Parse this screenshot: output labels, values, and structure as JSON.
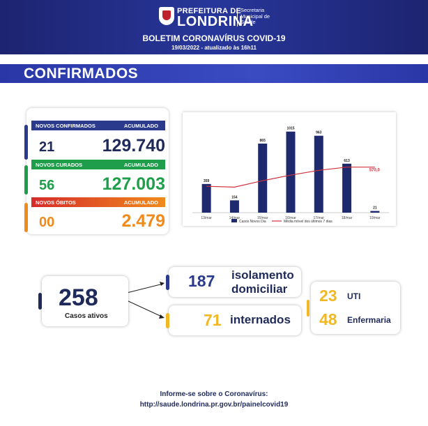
{
  "header": {
    "prefeitura_top": "PREFEITURA DE",
    "city": "LONDRINA",
    "secretaria": [
      "Secretaria",
      "Municipal de",
      "Saúde"
    ],
    "title": "BOLETIM CORONAVÍRUS COVID-19",
    "date": "19/03/2022 - atualizado às 16h11"
  },
  "section": {
    "title": "CONFIRMADOS"
  },
  "stats": {
    "confirmados": {
      "label": "NOVOS CONFIRMADOS",
      "acc_label": "ACUMULADO",
      "novos": "21",
      "acumulado": "129.740",
      "color": "#2b3a8c"
    },
    "curados": {
      "label": "NOVOS CURADOS",
      "acc_label": "ACUMULADO",
      "novos": "56",
      "acumulado": "127.003",
      "color": "#1e9e4a"
    },
    "obitos": {
      "label": "NOVOS ÓBITOS",
      "acc_label": "ACUMULADO",
      "novos": "00",
      "acumulado": "2.479",
      "color": "#f08a1c"
    }
  },
  "chart_data": {
    "type": "bar",
    "categories": [
      "13/mar",
      "14/mar",
      "15/mar",
      "16/mar",
      "17/mar",
      "18/mar",
      "19/mar"
    ],
    "series": [
      {
        "name": "Casos Novos Dia",
        "type": "bar",
        "values": [
          359,
          154,
          865,
          1015,
          963,
          613,
          21
        ],
        "color": "#1f2a6e"
      },
      {
        "name": "Média móvel dos últimos 7 dias",
        "type": "line",
        "values": [
          330,
          320,
          400,
          470,
          530,
          570,
          570
        ],
        "color": "#d0313d"
      }
    ],
    "data_labels": [
      "359",
      "154",
      "865",
      "1015",
      "963",
      "613",
      "21"
    ],
    "line_end_label": "570,0",
    "ylim": [
      0,
      1100
    ]
  },
  "status": {
    "ativos": {
      "value": "258",
      "label": "Casos ativos"
    },
    "isolamento": {
      "value": "187",
      "label_1": "isolamento",
      "label_2": "domiciliar"
    },
    "internados": {
      "value": "71",
      "label": "internados"
    },
    "uti": {
      "value": "23",
      "label": "UTI"
    },
    "enfermaria": {
      "value": "48",
      "label": "Enfermaria"
    }
  },
  "footer": {
    "line1": "Informe-se sobre o Coronavírus:",
    "line2": "http://saude.londrina.pr.gov.br/painelcovid19"
  },
  "colors": {
    "navy": "#1f2a5a",
    "yellow": "#f2b824",
    "blue_num": "#2b3a8c"
  }
}
